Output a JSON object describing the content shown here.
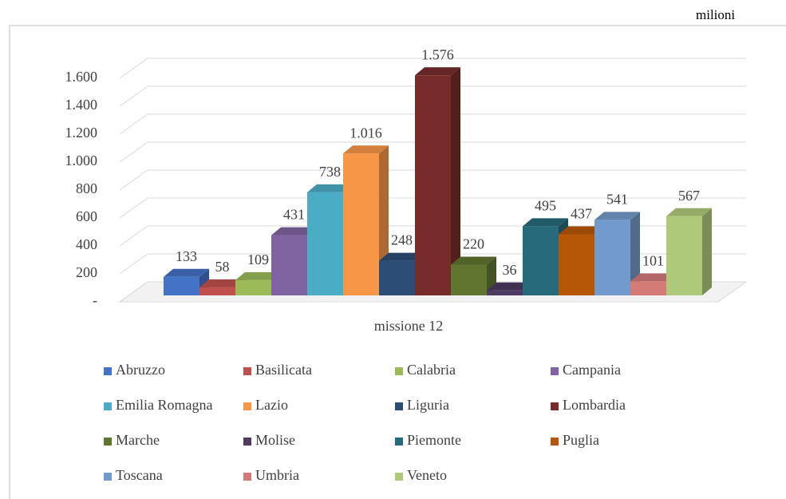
{
  "chart_data": {
    "type": "bar3d",
    "unit_label": "milioni",
    "categories": [
      "missione 12"
    ],
    "series": [
      {
        "name": "Abruzzo",
        "color": "#4472c4",
        "values": [
          133
        ]
      },
      {
        "name": "Basilicata",
        "color": "#c0504d",
        "values": [
          58
        ]
      },
      {
        "name": "Calabria",
        "color": "#9bbb59",
        "values": [
          109
        ]
      },
      {
        "name": "Campania",
        "color": "#8064a2",
        "values": [
          431
        ]
      },
      {
        "name": "Emilia Romagna",
        "color": "#4bacc6",
        "values": [
          738
        ]
      },
      {
        "name": "Lazio",
        "color": "#f79646",
        "values": [
          1016
        ],
        "value_labels": [
          "1.016"
        ]
      },
      {
        "name": "Liguria",
        "color": "#2c4d75",
        "values": [
          248
        ]
      },
      {
        "name": "Lombardia",
        "color": "#772c2a",
        "values": [
          1576
        ],
        "value_labels": [
          "1.576"
        ]
      },
      {
        "name": "Marche",
        "color": "#5f7530",
        "values": [
          220
        ]
      },
      {
        "name": "Molise",
        "color": "#4d3b62",
        "values": [
          36
        ]
      },
      {
        "name": "Piemonte",
        "color": "#276a7c",
        "values": [
          495
        ]
      },
      {
        "name": "Puglia",
        "color": "#b65708",
        "values": [
          437
        ]
      },
      {
        "name": "Toscana",
        "color": "#729aca",
        "values": [
          541
        ]
      },
      {
        "name": "Umbria",
        "color": "#d47a77",
        "values": [
          101
        ]
      },
      {
        "name": "Veneto",
        "color": "#afc97a",
        "values": [
          567
        ]
      }
    ],
    "ylim": [
      0,
      1600
    ],
    "yticks": [
      {
        "value": 0,
        "label": "-"
      },
      200,
      400,
      600,
      800,
      {
        "value": 1000,
        "label": "1.000"
      },
      {
        "value": 1200,
        "label": "1.200"
      },
      {
        "value": 1400,
        "label": "1.400"
      },
      {
        "value": 1600,
        "label": "1.600"
      }
    ],
    "grid": true,
    "legend": "bottom"
  }
}
